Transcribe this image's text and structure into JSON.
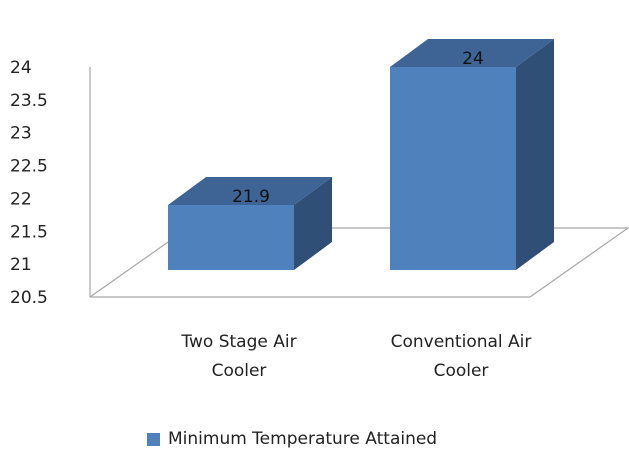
{
  "chart_data": {
    "type": "bar",
    "categories": [
      "Two Stage Air Cooler",
      "Conventional Air Cooler"
    ],
    "category_lines": [
      [
        "Two Stage Air",
        "Cooler"
      ],
      [
        "Conventional Air",
        "Cooler"
      ]
    ],
    "series": [
      {
        "name": "Minimum Temperature Attained",
        "values": [
          21.9,
          24
        ]
      }
    ],
    "data_labels": [
      "21.9",
      "24"
    ],
    "yticks": [
      "20.5",
      "21",
      "21.5",
      "22",
      "22.5",
      "23",
      "23.5",
      "24"
    ],
    "ylim": [
      20.5,
      24
    ],
    "grid": false,
    "legend_position": "bottom",
    "three_d": true,
    "colors": {
      "front": "#4f81bd",
      "side": "#2f4f77",
      "top": "#3d6494",
      "frame": "#a6a6a6",
      "legend": "#4f81bd"
    }
  }
}
